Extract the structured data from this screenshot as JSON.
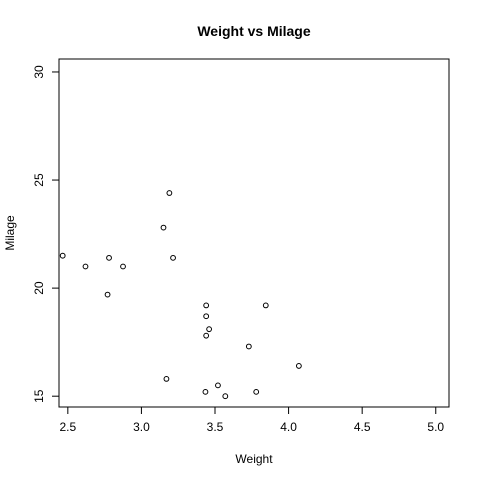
{
  "chart_data": {
    "type": "scatter",
    "title": "Weight vs Milage",
    "xlabel": "Weight",
    "ylabel": "Milage",
    "xlim": [
      2.44,
      5.09
    ],
    "ylim": [
      14.5,
      30.6
    ],
    "xticks": [
      2.5,
      3.0,
      3.5,
      4.0,
      4.5,
      5.0
    ],
    "xtick_labels": [
      "2.5",
      "3.0",
      "3.5",
      "4.0",
      "4.5",
      "5.0"
    ],
    "yticks": [
      15,
      20,
      25,
      30
    ],
    "ytick_labels": [
      "15",
      "20",
      "25",
      "30"
    ],
    "grid": false,
    "legend": "none",
    "marker": "open-circle",
    "color": "#000000",
    "points": [
      {
        "x": 2.465,
        "y": 21.5
      },
      {
        "x": 2.62,
        "y": 21.0
      },
      {
        "x": 2.78,
        "y": 21.4
      },
      {
        "x": 2.77,
        "y": 19.7
      },
      {
        "x": 2.875,
        "y": 21.0
      },
      {
        "x": 3.15,
        "y": 22.8
      },
      {
        "x": 3.19,
        "y": 24.4
      },
      {
        "x": 3.215,
        "y": 21.4
      },
      {
        "x": 3.17,
        "y": 15.8
      },
      {
        "x": 3.435,
        "y": 15.2
      },
      {
        "x": 3.44,
        "y": 19.2
      },
      {
        "x": 3.44,
        "y": 18.7
      },
      {
        "x": 3.46,
        "y": 18.1
      },
      {
        "x": 3.44,
        "y": 17.8
      },
      {
        "x": 3.52,
        "y": 15.5
      },
      {
        "x": 3.57,
        "y": 15.0
      },
      {
        "x": 3.73,
        "y": 17.3
      },
      {
        "x": 3.78,
        "y": 15.2
      },
      {
        "x": 3.845,
        "y": 19.2
      },
      {
        "x": 4.07,
        "y": 16.4
      }
    ]
  }
}
